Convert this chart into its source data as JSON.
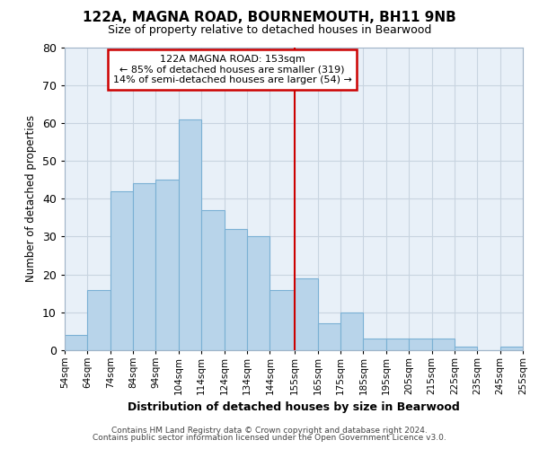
{
  "title": "122A, MAGNA ROAD, BOURNEMOUTH, BH11 9NB",
  "subtitle": "Size of property relative to detached houses in Bearwood",
  "xlabel": "Distribution of detached houses by size in Bearwood",
  "ylabel": "Number of detached properties",
  "footer_line1": "Contains HM Land Registry data © Crown copyright and database right 2024.",
  "footer_line2": "Contains public sector information licensed under the Open Government Licence v3.0.",
  "bin_edges": [
    54,
    64,
    74,
    84,
    94,
    104,
    114,
    124,
    134,
    144,
    155,
    165,
    175,
    185,
    195,
    205,
    215,
    225,
    235,
    245,
    255
  ],
  "bar_heights": [
    4,
    16,
    42,
    44,
    45,
    61,
    37,
    32,
    30,
    16,
    19,
    7,
    10,
    3,
    3,
    3,
    3,
    1,
    0,
    1
  ],
  "bar_color": "#b8d4ea",
  "bar_edge_color": "#7ab0d4",
  "grid_color": "#c8d4e0",
  "plot_bg_color": "#e8f0f8",
  "ref_line_x": 155,
  "ref_line_color": "#cc0000",
  "annotation_line1": "122A MAGNA ROAD: 153sqm",
  "annotation_line2": "← 85% of detached houses are smaller (319)",
  "annotation_line3": "14% of semi-detached houses are larger (54) →",
  "annotation_box_color": "white",
  "annotation_box_edge": "#cc0000",
  "ylim": [
    0,
    80
  ],
  "yticks": [
    0,
    10,
    20,
    30,
    40,
    50,
    60,
    70,
    80
  ],
  "tick_labels": [
    "54sqm",
    "64sqm",
    "74sqm",
    "84sqm",
    "94sqm",
    "104sqm",
    "114sqm",
    "124sqm",
    "134sqm",
    "144sqm",
    "155sqm",
    "165sqm",
    "175sqm",
    "185sqm",
    "195sqm",
    "205sqm",
    "215sqm",
    "225sqm",
    "235sqm",
    "245sqm",
    "255sqm"
  ],
  "figure_bg": "#ffffff"
}
